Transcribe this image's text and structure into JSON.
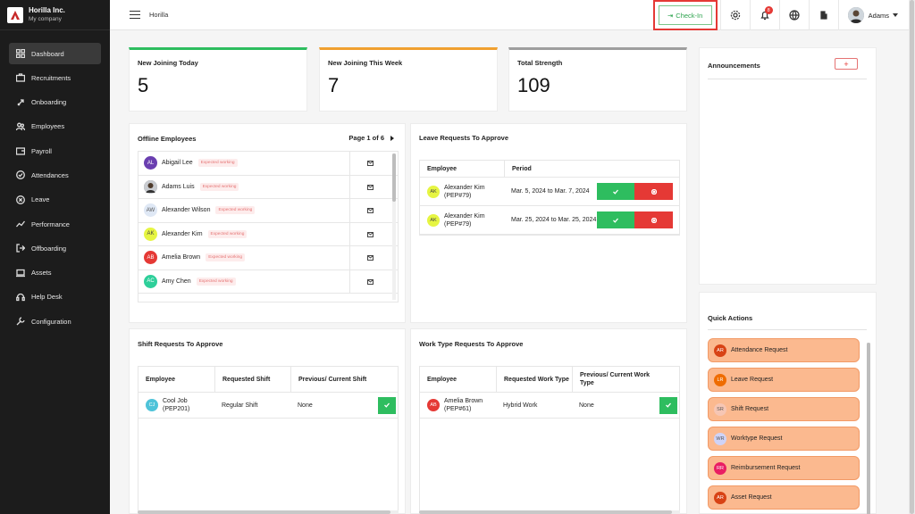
{
  "brand": {
    "name": "Horilla Inc.",
    "subtitle": "My company"
  },
  "sidebar": {
    "items": [
      {
        "label": "Dashboard",
        "icon": "grid-icon",
        "active": true
      },
      {
        "label": "Recruitments",
        "icon": "briefcase-icon"
      },
      {
        "label": "Onboarding",
        "icon": "rocket-icon"
      },
      {
        "label": "Employees",
        "icon": "users-icon"
      },
      {
        "label": "Payroll",
        "icon": "wallet-icon"
      },
      {
        "label": "Attendances",
        "icon": "check-circle-icon"
      },
      {
        "label": "Leave",
        "icon": "x-circle-icon"
      },
      {
        "label": "Performance",
        "icon": "chart-line-icon"
      },
      {
        "label": "Offboarding",
        "icon": "exit-icon"
      },
      {
        "label": "Assets",
        "icon": "laptop-icon"
      },
      {
        "label": "Help Desk",
        "icon": "headset-icon"
      },
      {
        "label": "Configuration",
        "icon": "wrench-icon"
      }
    ]
  },
  "header": {
    "breadcrumb": "Horilla",
    "checkin_label": "Check-In",
    "notification_count": "8",
    "user_name": "Adams"
  },
  "stats": [
    {
      "label": "New Joining Today",
      "value": "5",
      "color": "#2ebd5f"
    },
    {
      "label": "New Joining This Week",
      "value": "7",
      "color": "#f0a030"
    },
    {
      "label": "Total Strength",
      "value": "109",
      "color": "#9e9e9e"
    }
  ],
  "offline": {
    "title": "Offline Employees",
    "pager": "Page 1 of 6",
    "status_label": "Expected working",
    "employees": [
      {
        "name": "Abigail Lee",
        "initials": "AL",
        "color": "#6a3fb0"
      },
      {
        "name": "Adams Luis",
        "initials": "",
        "color": "#777777"
      },
      {
        "name": "Alexander Wilson",
        "initials": "AW",
        "color": "#dfe8f5"
      },
      {
        "name": "Alexander Kim",
        "initials": "AK",
        "color": "#e6f542"
      },
      {
        "name": "Amelia Brown",
        "initials": "AB",
        "color": "#e53935"
      },
      {
        "name": "Amy Chen",
        "initials": "AC",
        "color": "#2ecf9a"
      }
    ]
  },
  "leave": {
    "title": "Leave Requests To Approve",
    "headers": [
      "Employee",
      "Period"
    ],
    "rows": [
      {
        "initials": "AK",
        "name": "Alexander Kim",
        "id": "(PEP#79)",
        "period": "Mar. 5, 2024 to Mar. 7, 2024"
      },
      {
        "initials": "AK",
        "name": "Alexander Kim",
        "id": "(PEP#79)",
        "period": "Mar. 25, 2024 to Mar. 25, 2024"
      }
    ]
  },
  "shift": {
    "title": "Shift Requests To Approve",
    "headers": [
      "Employee",
      "Requested Shift",
      "Previous/ Current Shift"
    ],
    "rows": [
      {
        "initials": "CJ",
        "name": "Cool Job",
        "id": "(PEP201)",
        "requested": "Regular Shift",
        "previous": "None"
      }
    ]
  },
  "worktype": {
    "title": "Work Type Requests To Approve",
    "headers": [
      "Employee",
      "Requested Work Type",
      "Previous/ Current Work Type"
    ],
    "rows": [
      {
        "initials": "AB",
        "name": "Amelia Brown",
        "id": "(PEP#61)",
        "requested": "Hybrid Work",
        "previous": "None"
      }
    ]
  },
  "announcements": {
    "title": "Announcements",
    "add_label": "+"
  },
  "quick_actions": {
    "title": "Quick Actions",
    "items": [
      {
        "initials": "AR",
        "label": "Attendance Request",
        "color": "#d84315"
      },
      {
        "initials": "LR",
        "label": "Leave Request",
        "color": "#ef6c00"
      },
      {
        "initials": "SR",
        "label": "Shift Request",
        "color": "#f6c6b4"
      },
      {
        "initials": "WR",
        "label": "Worktype Request",
        "color": "#cfd3f7"
      },
      {
        "initials": "RR",
        "label": "Reimbursement Request",
        "color": "#e91e63"
      },
      {
        "initials": "AR",
        "label": "Asset Request",
        "color": "#d84315"
      }
    ]
  }
}
